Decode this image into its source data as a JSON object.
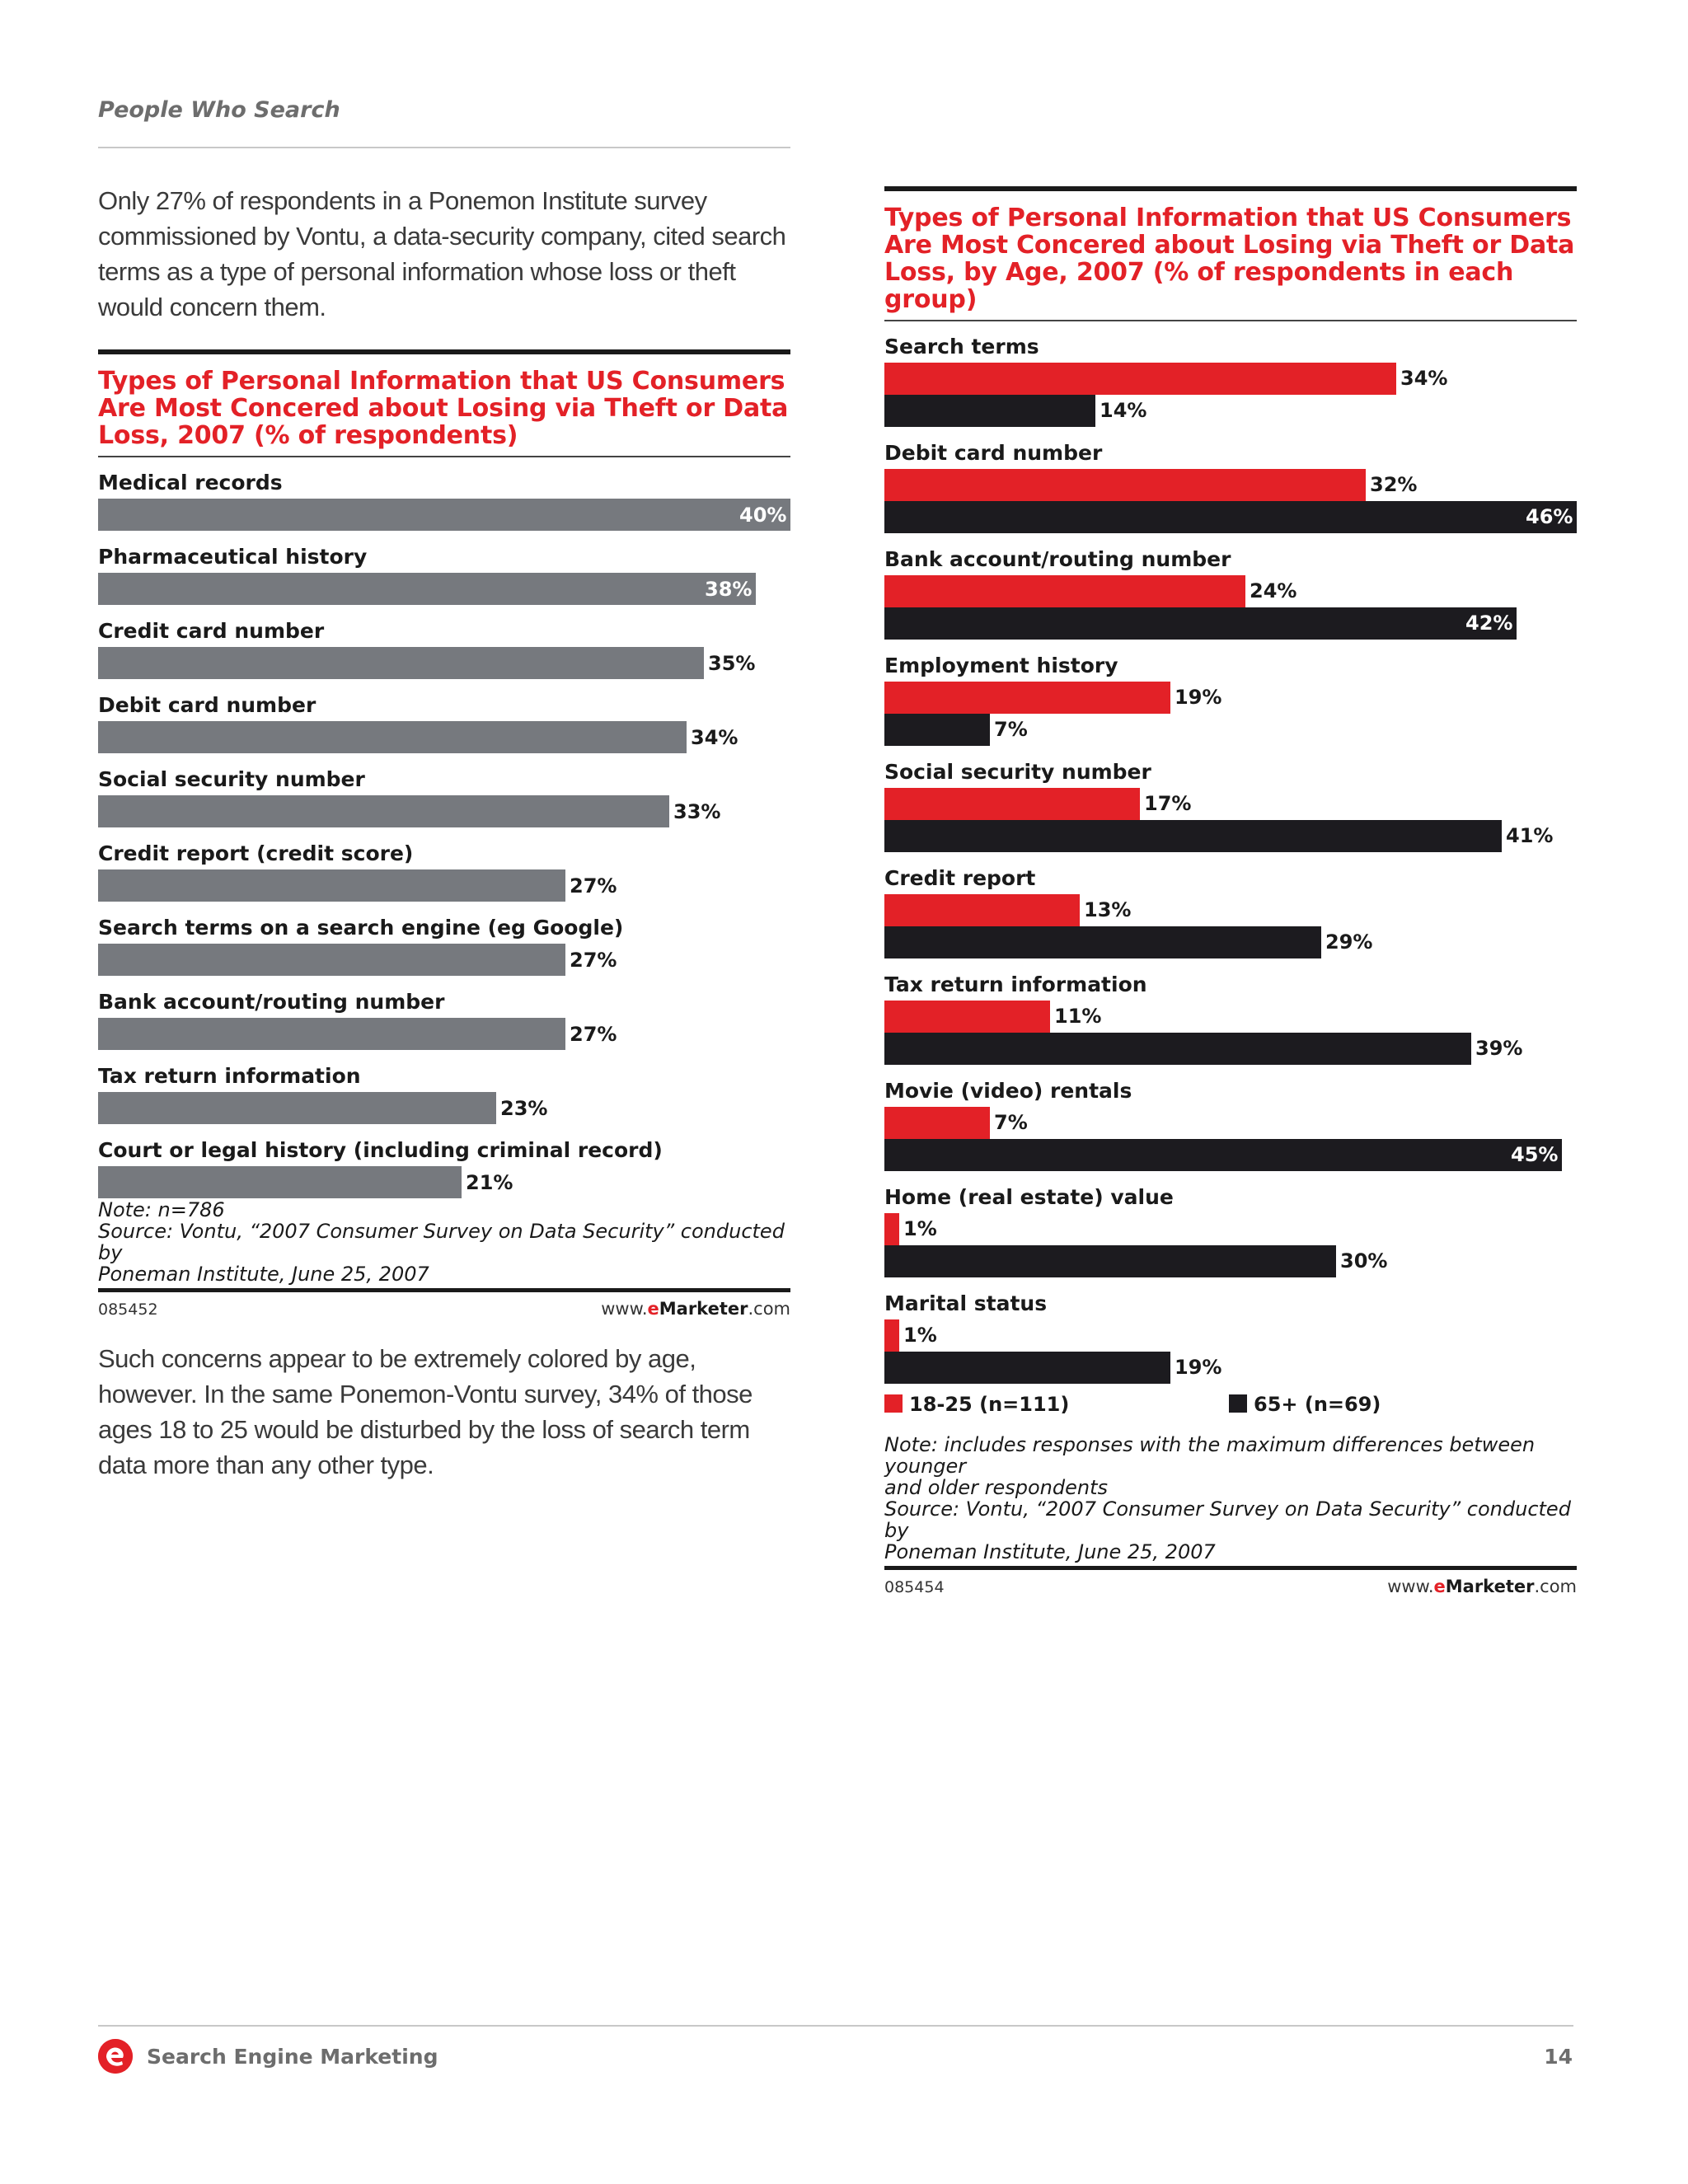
{
  "header": {
    "section_title": "People Who Search"
  },
  "paragraphs": {
    "intro": "Only 27% of respondents in a Ponemon Institute survey commissioned by Vontu, a data-security company, cited search terms as a type of personal information whose loss or theft would concern them.",
    "followup": "Such concerns appear to be extremely colored by age, however. In the same Ponemon-Vontu survey, 34% of those ages 18 to 25 would be disturbed by the loss of search term data more than any other type."
  },
  "chart_data": [
    {
      "type": "bar",
      "orientation": "horizontal",
      "title": "Types of Personal Information that US Consumers Are Most Concered about Losing via Theft or Data Loss, 2007 (% of respondents)",
      "categories": [
        "Medical records",
        "Pharmaceutical history",
        "Credit card number",
        "Debit card number",
        "Social security number",
        "Credit report (credit score)",
        "Search terms on a search engine (eg Google)",
        "Bank account/routing number",
        "Tax return information",
        "Court or legal history (including criminal record)"
      ],
      "values": [
        40,
        38,
        35,
        34,
        33,
        27,
        27,
        27,
        23,
        21
      ],
      "value_suffix": "%",
      "xlim": [
        0,
        40
      ],
      "color": "#76797e",
      "note": "Note: n=786",
      "source_line1": "Source: Vontu, “2007 Consumer Survey on Data Security” conducted by",
      "source_line2": "Poneman Institute, June 25, 2007",
      "chart_id": "085452",
      "site_prefix": "www.",
      "site_e": "e",
      "site_brand": "Marketer",
      "site_suffix": ".com"
    },
    {
      "type": "bar",
      "orientation": "horizontal",
      "title": "Types of Personal Information that US Consumers Are Most Concered about Losing via Theft or Data Loss, by Age, 2007 (% of respondents in each group)",
      "categories": [
        "Search terms",
        "Debit card number",
        "Bank account/routing number",
        "Employment history",
        "Social security number",
        "Credit report",
        "Tax return information",
        "Movie (video) rentals",
        "Home (real estate) value",
        "Marital status"
      ],
      "series": [
        {
          "name": "18-25 (n=111)",
          "values": [
            34,
            32,
            24,
            19,
            17,
            13,
            11,
            7,
            1,
            1
          ],
          "color": "#e32127"
        },
        {
          "name": "65+ (n=69)",
          "values": [
            14,
            46,
            42,
            7,
            41,
            29,
            39,
            45,
            30,
            19
          ],
          "color": "#1c1b1f"
        }
      ],
      "value_suffix": "%",
      "xlim": [
        0,
        46
      ],
      "legend_position": "bottom",
      "note_line1": "Note: includes responses with the maximum differences between younger",
      "note_line2": "and older respondents",
      "source_line1": "Source: Vontu, “2007 Consumer Survey on Data Security” conducted by",
      "source_line2": "Poneman Institute, June 25, 2007",
      "chart_id": "085454",
      "site_prefix": "www.",
      "site_e": "e",
      "site_brand": "Marketer",
      "site_suffix": ".com"
    }
  ],
  "footer": {
    "label": "Search Engine Marketing",
    "page_number": "14"
  }
}
